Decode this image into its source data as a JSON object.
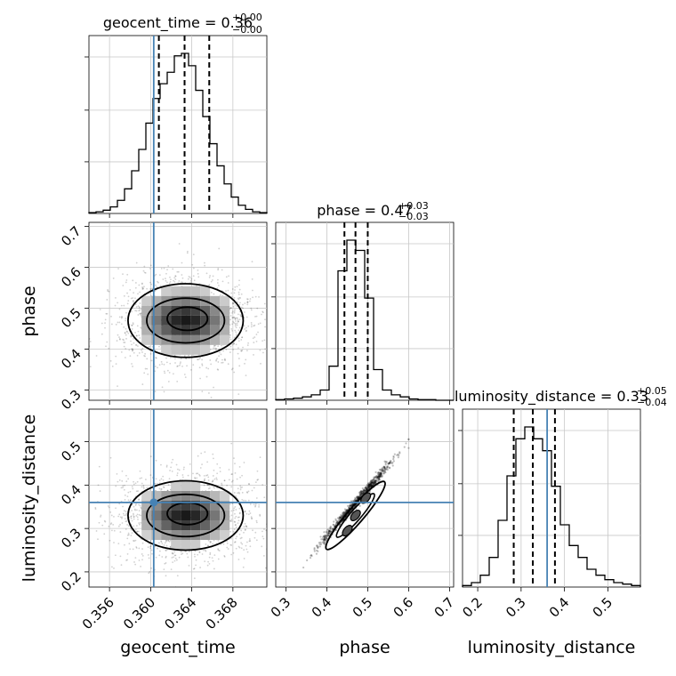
{
  "chart_data": {
    "type": "corner",
    "grid": true,
    "truth_color": "#4682b4",
    "parameters": [
      {
        "name": "geocent_time",
        "axis_label": "geocent_time",
        "title_prefix": "geocent_time = 0.36",
        "title_plus": "+0.00",
        "title_minus": "−0.00",
        "range": [
          0.354,
          0.3713
        ],
        "ticks": [
          "0.356",
          "0.360",
          "0.364",
          "0.368"
        ],
        "tick_values": [
          0.356,
          0.36,
          0.364,
          0.368
        ],
        "truth": 0.3603,
        "quantiles": [
          0.3608,
          0.3633,
          0.3657
        ]
      },
      {
        "name": "phase",
        "axis_label": "phase",
        "title_prefix": "phase = 0.47",
        "title_plus": "+0.03",
        "title_minus": "−0.03",
        "range": [
          0.275,
          0.71
        ],
        "ticks": [
          "0.3",
          "0.4",
          "0.5",
          "0.6",
          "0.7"
        ],
        "tick_values": [
          0.3,
          0.4,
          0.5,
          0.6,
          0.7
        ],
        "quantiles": [
          0.443,
          0.47,
          0.5
        ]
      },
      {
        "name": "luminosity_distance",
        "axis_label": "luminosity_distance",
        "title_prefix": "luminosity_distance = 0.33",
        "title_plus": "+0.05",
        "title_minus": "−0.04",
        "range": [
          0.165,
          0.575
        ],
        "ticks": [
          "0.2",
          "0.3",
          "0.4",
          "0.5"
        ],
        "tick_values": [
          0.2,
          0.3,
          0.4,
          0.5
        ],
        "truth": 0.36,
        "quantiles": [
          0.283,
          0.327,
          0.378
        ]
      }
    ],
    "hist_geocent_time": [
      1,
      2,
      4,
      8,
      16,
      30,
      52,
      78,
      110,
      140,
      158,
      172,
      192,
      195,
      180,
      150,
      118,
      85,
      58,
      36,
      20,
      10,
      5,
      2,
      1
    ],
    "hist_phase": [
      1,
      2,
      3,
      5,
      8,
      15,
      50,
      190,
      235,
      220,
      150,
      45,
      15,
      8,
      5,
      2,
      1,
      1,
      0,
      0
    ],
    "hist_luminosity_distance": [
      1,
      3,
      8,
      20,
      45,
      75,
      100,
      108,
      100,
      92,
      68,
      42,
      28,
      20,
      12,
      8,
      5,
      3,
      2,
      1
    ],
    "scatter_time_phase": {
      "center": [
        0.3634,
        0.47
      ],
      "spread": [
        0.0028,
        0.045
      ]
    },
    "scatter_time_distance": {
      "center": [
        0.3634,
        0.33
      ],
      "spread": [
        0.0028,
        0.04
      ]
    },
    "scatter_phase_distance": {
      "x_range": [
        0.33,
        0.6
      ],
      "line": {
        "x0": 0.33,
        "y0": 0.205,
        "x1": 0.6,
        "y1": 0.5
      }
    }
  }
}
